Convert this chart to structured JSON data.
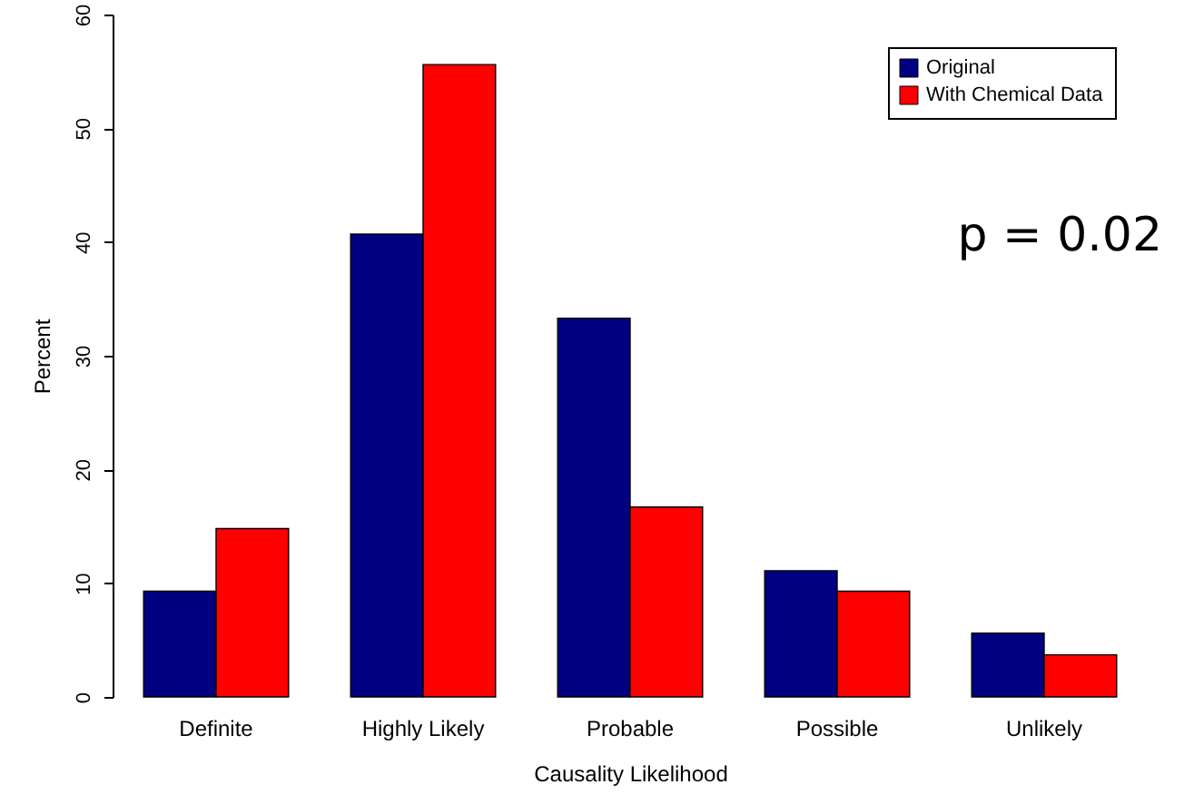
{
  "chart_data": {
    "type": "bar",
    "xlabel": "Causality Likelihood",
    "ylabel": "Percent",
    "categories": [
      "Definite",
      "Highly Likely",
      "Probable",
      "Possible",
      "Unlikely"
    ],
    "series": [
      {
        "name": "Original",
        "color": "#000080",
        "values": [
          9.3,
          40.7,
          33.3,
          11.1,
          5.6
        ]
      },
      {
        "name": "With Chemical Data",
        "color": "#ff0000",
        "values": [
          14.8,
          55.6,
          16.7,
          9.3,
          3.7
        ]
      }
    ],
    "ylim": [
      0,
      60
    ],
    "yticks": [
      0,
      10,
      20,
      30,
      40,
      50,
      60
    ],
    "legend": "top right",
    "grid": false,
    "annotations": [
      "p = 0.02"
    ]
  }
}
